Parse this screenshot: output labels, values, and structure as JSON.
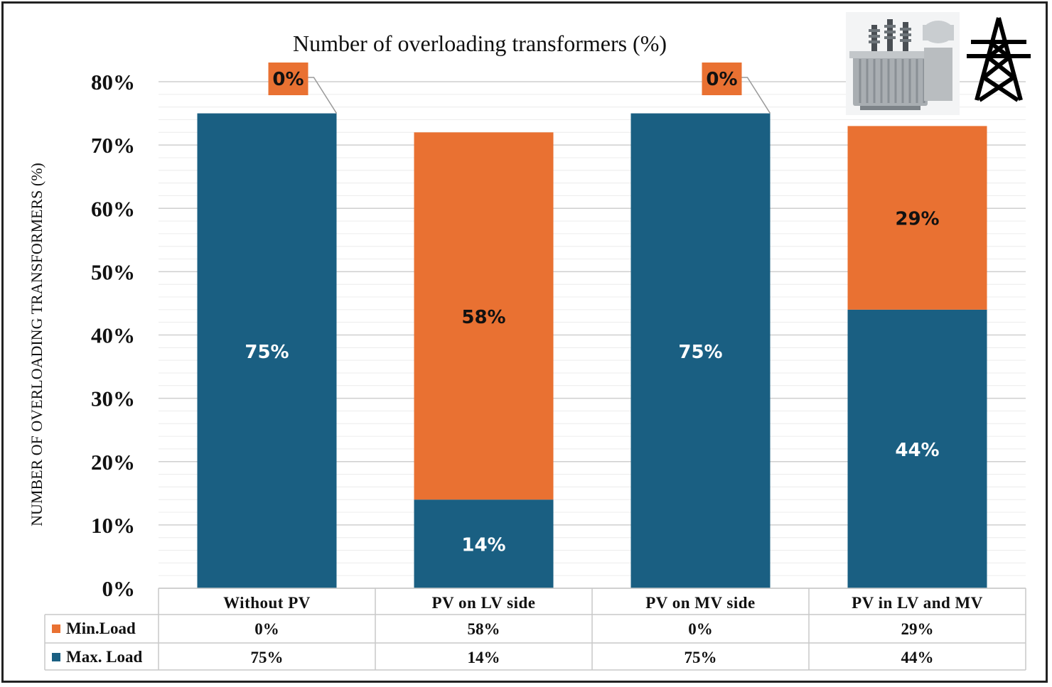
{
  "chart_data": {
    "type": "bar",
    "stacked": true,
    "title": "Number of  overloading transformers (%)",
    "ylabel": "NUMBER OF  OVERLOADING TRANSFORMERS (%)",
    "ylim": [
      0,
      80
    ],
    "yticks": [
      "0%",
      "10%",
      "20%",
      "30%",
      "40%",
      "50%",
      "60%",
      "70%",
      "80%"
    ],
    "categories": [
      "Without PV",
      "PV on LV side",
      "PV on MV side",
      "PV in LV and MV"
    ],
    "series": [
      {
        "name": "Max. Load",
        "values": [
          75,
          14,
          75,
          44
        ],
        "labels": [
          "75%",
          "14%",
          "75%",
          "44%"
        ],
        "color": "#1a5f82"
      },
      {
        "name": "Min.Load",
        "values": [
          0,
          58,
          0,
          29
        ],
        "labels": [
          "0%",
          "58%",
          "0%",
          "29%"
        ],
        "color": "#e97132"
      }
    ],
    "grid": true,
    "data_table": true,
    "icons": [
      "transformer-image",
      "power-tower-icon"
    ]
  }
}
